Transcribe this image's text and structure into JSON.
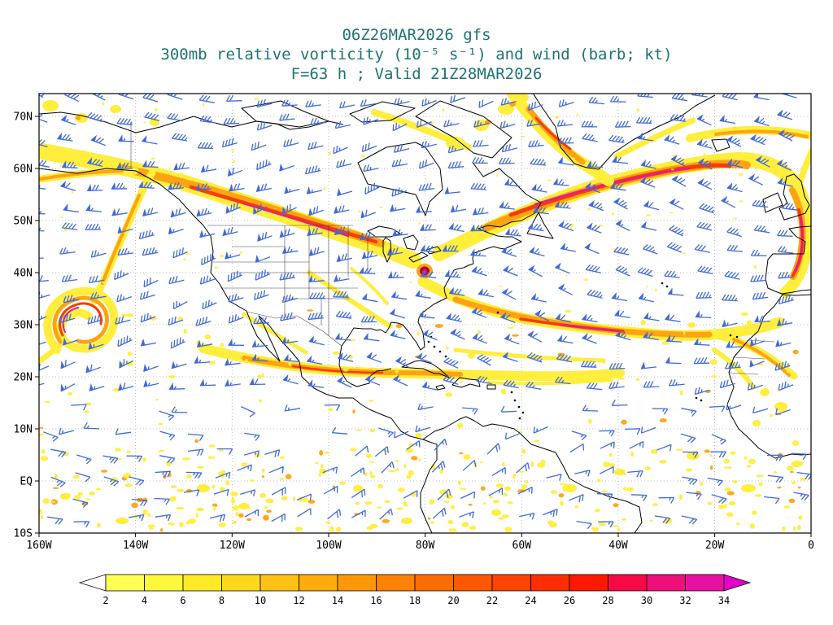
{
  "title": {
    "line1": "06Z26MAR2026 gfs",
    "line2": "300mb relative vorticity (10⁻⁵ s⁻¹) and wind (barb; kt)",
    "line3": "F=63 h ; Valid 21Z28MAR2026"
  },
  "axes": {
    "y_labels": [
      "70N",
      "60N",
      "50N",
      "40N",
      "30N",
      "20N",
      "10N",
      "EQ",
      "10S"
    ],
    "x_labels": [
      "160W",
      "140W",
      "120W",
      "100W",
      "80W",
      "60W",
      "40W",
      "20W",
      "0"
    ]
  },
  "colorbar": {
    "tick_labels": [
      "2",
      "4",
      "6",
      "8",
      "10",
      "12",
      "14",
      "16",
      "18",
      "20",
      "22",
      "24",
      "26",
      "28",
      "30",
      "32",
      "34"
    ],
    "segment_colors": [
      "#ffff54",
      "#fff83a",
      "#ffea28",
      "#ffd81e",
      "#ffc214",
      "#ffac0c",
      "#ff9706",
      "#ff8202",
      "#ff6d00",
      "#ff5800",
      "#ff4300",
      "#ff2e00",
      "#ff1900",
      "#f50a46",
      "#ee0f78",
      "#e611a0"
    ],
    "left_arrow_color": "#ffffff",
    "right_arrow_color": "#e300c8"
  },
  "colors": {
    "title_text": "#1d7372",
    "axis_text": "#000000",
    "wind_barb": "#4169dd",
    "coastline": "#000000",
    "border_line": "#333333",
    "grid_line": "#aaaaaa",
    "frame": "#000000",
    "background": "#ffffff",
    "vort_yellow": "#ffee3c",
    "vort_orange": "#ffa312",
    "vort_red": "#f63d00",
    "vort_dark_red": "#b50020",
    "vort_magenta": "#e6189a"
  },
  "chart_data": {
    "type": "map",
    "model": "gfs",
    "init_time": "06Z26MAR2026",
    "field": "300mb relative vorticity",
    "field_units": "10⁻⁵ s⁻¹",
    "overlay": "wind (barb; kt)",
    "forecast": "F=63 h",
    "valid_time": "21Z28MAR2026",
    "colorbar_levels": [
      2,
      4,
      6,
      8,
      10,
      12,
      14,
      16,
      18,
      20,
      22,
      24,
      26,
      28,
      30,
      32,
      34
    ],
    "lat_axis": [
      "10S",
      "EQ",
      "10N",
      "20N",
      "30N",
      "40N",
      "50N",
      "60N",
      "70N"
    ],
    "lon_axis": [
      "160W",
      "140W",
      "120W",
      "100W",
      "80W",
      "60W",
      "40W",
      "20W",
      "0"
    ],
    "grid": true,
    "legend_position": "bottom"
  }
}
